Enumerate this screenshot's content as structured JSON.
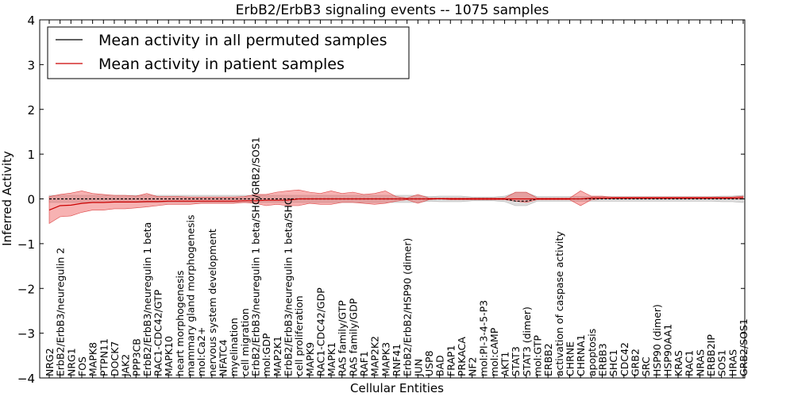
{
  "chart_data": {
    "type": "line",
    "title": "ErbB2/ErbB3 signaling events -- 1075 samples",
    "xlabel": "Cellular Entities",
    "ylabel": "Inferred Activity",
    "ylim": [
      -4,
      4
    ],
    "yticks": [
      "4",
      "3",
      "2",
      "1",
      "0",
      "−1",
      "−2",
      "−3",
      "−4"
    ],
    "legend_position": "top-left",
    "categories": [
      "NRG2",
      "ErbB2/ErbB3/neuregulin 2",
      "NRG1",
      "FOS",
      "MAPK8",
      "PTPN11",
      "DOCK7",
      "JAK2",
      "PPP3CB",
      "ErbB2/ErbB3/neuregulin 1 beta",
      "RAC1-CDC42/GTP",
      "MAPK10",
      "heart morphogenesis",
      "mammary gland morphogenesis",
      "mol:Ca2+",
      "nervous system development",
      "NFATC4",
      "myelination",
      "cell migration",
      "ErbB2/ErbB3/neuregulin 1 beta/SHC/GRB2/SOS1",
      "mol:GDP",
      "MAP2K1",
      "ErbB2/ErbB3/neuregulin 1 beta/SHC",
      "cell proliferation",
      "MAPK9",
      "RAC1-CDC42/GDP",
      "MAPK1",
      "RAS family/GTP",
      "RAS family/GDP",
      "RAF1",
      "MAP2K2",
      "MAPK3",
      "RNF41",
      "ErbB2/ErbB2/HSP90 (dimer)",
      "JUN",
      "USP8",
      "BAD",
      "FRAP1",
      "PRKACA",
      "NF2",
      "mol:PI-3-4-5-P3",
      "mol:cAMP",
      "AKT1",
      "STAT3",
      "STAT3 (dimer)",
      "mol:GTP",
      "ERBB2",
      "activation of caspase activity",
      "CHRNE",
      "CHRNA1",
      "apoptosis",
      "ERBB3",
      "SHC1",
      "CDC42",
      "GRB2",
      "SRC",
      "HSP90 (dimer)",
      "HSP90AA1",
      "KRAS",
      "RAC1",
      "NRAS",
      "ERBB2IP",
      "SOS1",
      "HRAS",
      "GRB2/SOS1"
    ],
    "series": [
      {
        "name": "Mean activity in all permuted samples",
        "color": "#000000",
        "values": [
          0.0,
          0.0,
          0.0,
          0.0,
          0.0,
          0.0,
          0.0,
          0.0,
          0.0,
          0.0,
          0.0,
          0.0,
          0.0,
          0.0,
          0.0,
          0.0,
          0.0,
          0.0,
          0.0,
          0.0,
          0.0,
          0.0,
          0.0,
          0.0,
          0.0,
          0.0,
          0.0,
          0.0,
          0.0,
          0.0,
          0.0,
          0.0,
          0.0,
          0.0,
          0.0,
          0.0,
          0.0,
          0.0,
          0.0,
          0.0,
          0.0,
          0.0,
          0.0,
          -0.05,
          -0.05,
          0.0,
          0.0,
          0.0,
          0.0,
          0.0,
          0.0,
          0.0,
          0.0,
          0.0,
          0.0,
          0.0,
          0.0,
          0.0,
          0.0,
          0.0,
          0.0,
          0.0,
          0.0,
          0.0,
          0.0
        ],
        "lower": [
          -0.08,
          -0.08,
          -0.08,
          -0.08,
          -0.08,
          -0.08,
          -0.08,
          -0.08,
          -0.08,
          -0.08,
          -0.08,
          -0.08,
          -0.08,
          -0.08,
          -0.08,
          -0.08,
          -0.08,
          -0.08,
          -0.08,
          -0.08,
          -0.08,
          -0.08,
          -0.08,
          -0.08,
          -0.08,
          -0.08,
          -0.08,
          -0.08,
          -0.08,
          -0.08,
          -0.08,
          -0.08,
          -0.08,
          -0.08,
          -0.08,
          -0.05,
          -0.06,
          -0.06,
          -0.06,
          -0.04,
          -0.04,
          -0.04,
          -0.06,
          -0.15,
          -0.15,
          -0.05,
          -0.05,
          -0.05,
          -0.05,
          -0.05,
          -0.05,
          -0.05,
          -0.05,
          -0.05,
          -0.05,
          -0.05,
          -0.05,
          -0.05,
          -0.05,
          -0.05,
          -0.05,
          -0.05,
          -0.06,
          -0.06,
          -0.08
        ],
        "upper": [
          0.08,
          0.08,
          0.08,
          0.08,
          0.08,
          0.08,
          0.08,
          0.08,
          0.08,
          0.08,
          0.08,
          0.08,
          0.08,
          0.08,
          0.08,
          0.08,
          0.08,
          0.08,
          0.08,
          0.08,
          0.08,
          0.08,
          0.08,
          0.08,
          0.08,
          0.08,
          0.08,
          0.08,
          0.08,
          0.08,
          0.08,
          0.08,
          0.08,
          0.08,
          0.08,
          0.05,
          0.06,
          0.06,
          0.06,
          0.04,
          0.04,
          0.04,
          0.06,
          0.14,
          0.14,
          0.05,
          0.05,
          0.05,
          0.05,
          0.05,
          0.05,
          0.05,
          0.05,
          0.05,
          0.05,
          0.05,
          0.05,
          0.05,
          0.05,
          0.05,
          0.05,
          0.05,
          0.06,
          0.06,
          0.08
        ]
      },
      {
        "name": "Mean activity in patient samples",
        "color": "#cc0000",
        "values": [
          -0.25,
          -0.15,
          -0.14,
          -0.1,
          -0.08,
          -0.08,
          -0.07,
          -0.07,
          -0.07,
          -0.06,
          -0.06,
          -0.05,
          -0.05,
          -0.05,
          -0.05,
          -0.05,
          -0.05,
          -0.05,
          -0.04,
          -0.04,
          -0.03,
          -0.03,
          -0.03,
          0.0,
          0.0,
          0.0,
          0.0,
          0.0,
          0.0,
          0.0,
          0.0,
          0.0,
          0.0,
          0.0,
          0.0,
          0.0,
          0.0,
          0.0,
          0.0,
          0.0,
          0.0,
          0.0,
          0.0,
          0.0,
          0.0,
          0.0,
          0.0,
          0.0,
          0.0,
          0.0,
          0.02,
          0.02,
          0.02,
          0.02,
          0.02,
          0.02,
          0.02,
          0.02,
          0.02,
          0.02,
          0.02,
          0.02,
          0.02,
          0.02,
          0.03
        ],
        "lower": [
          -0.55,
          -0.4,
          -0.38,
          -0.3,
          -0.25,
          -0.25,
          -0.22,
          -0.22,
          -0.2,
          -0.18,
          -0.15,
          -0.12,
          -0.12,
          -0.12,
          -0.1,
          -0.1,
          -0.1,
          -0.1,
          -0.08,
          -0.1,
          -0.15,
          -0.12,
          -0.15,
          -0.15,
          -0.1,
          -0.12,
          -0.12,
          -0.08,
          -0.08,
          -0.1,
          -0.12,
          -0.1,
          -0.05,
          -0.02,
          -0.1,
          -0.02,
          0.0,
          -0.02,
          -0.02,
          -0.02,
          -0.02,
          -0.02,
          -0.02,
          -0.05,
          -0.08,
          -0.02,
          -0.02,
          -0.02,
          -0.02,
          -0.15,
          -0.02,
          0.0,
          0.0,
          0.0,
          0.0,
          0.0,
          0.0,
          0.0,
          0.0,
          0.0,
          0.0,
          0.0,
          0.0,
          0.0,
          0.0
        ],
        "upper": [
          0.05,
          0.1,
          0.13,
          0.18,
          0.12,
          0.1,
          0.08,
          0.08,
          0.06,
          0.12,
          0.05,
          0.05,
          0.05,
          0.04,
          0.04,
          0.04,
          0.04,
          0.04,
          0.05,
          0.1,
          0.1,
          0.15,
          0.18,
          0.2,
          0.15,
          0.12,
          0.18,
          0.12,
          0.15,
          0.1,
          0.12,
          0.18,
          0.05,
          0.02,
          0.1,
          0.02,
          0.02,
          0.02,
          0.02,
          0.02,
          0.02,
          0.02,
          0.02,
          0.15,
          0.15,
          0.02,
          0.02,
          0.02,
          0.02,
          0.18,
          0.06,
          0.06,
          0.04,
          0.04,
          0.04,
          0.04,
          0.04,
          0.04,
          0.04,
          0.04,
          0.04,
          0.04,
          0.04,
          0.04,
          0.06
        ]
      }
    ]
  }
}
